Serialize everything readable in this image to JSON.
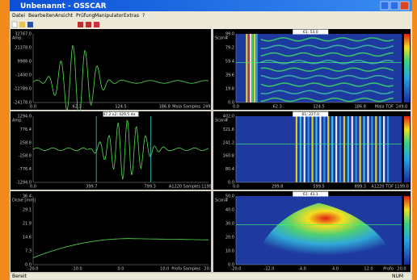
{
  "window": {
    "title": "Unbenannt - OSSCAR"
  },
  "menu": [
    "Datei",
    "Bearbeiten",
    "Ansicht",
    "Prüfung",
    "Manipulator",
    "Extras",
    "?"
  ],
  "panels": [
    {
      "unit": "Amp.",
      "yticks": [
        "32767.0",
        "21378.0",
        "9988.0",
        "-1400.0",
        "-12789.0",
        "-24178.0"
      ],
      "xticks": [
        "0.0",
        "62.3",
        "124.5",
        "186.8",
        "249.0"
      ],
      "xlabel": "Mala Samples"
    },
    {
      "unit": "Scan#",
      "yticks": [
        "99.0",
        "79.2",
        "59.4",
        "39.6",
        "19.8",
        "0.0"
      ],
      "xticks": [
        "0.0",
        "62.3",
        "124.5",
        "186.8",
        "249.0"
      ],
      "xlabel": "Mala TOF",
      "marker": "61: 53.0"
    },
    {
      "unit": "Amp.",
      "yticks": [
        "1294.0",
        "776.4",
        "258.8",
        "-258.8",
        "-776.4",
        "-1294.0"
      ],
      "xticks": [
        "0.0",
        "399.7",
        "799.3",
        "1199.0"
      ],
      "xlabel": "A1220 Samples",
      "marker": "x1: 747.2  x2: 429.5  dx: 317.7"
    },
    {
      "unit": "Scan#",
      "yticks": [
        "402.0",
        "321.6",
        "241.2",
        "160.8",
        "80.4",
        "0.0"
      ],
      "xticks": [
        "0.0",
        "299.8",
        "599.5",
        "899.3",
        "1199.0"
      ],
      "xlabel": "A1220 TOF",
      "marker": "61: 227.0"
    },
    {
      "unit": "Dicke [mm]",
      "yticks": [
        "36.4",
        "29.1",
        "21.9",
        "14.6",
        "7.3",
        "0.0"
      ],
      "xticks": [
        "-20.0",
        "-10.0",
        "0.0",
        "10.0",
        "20.0"
      ],
      "xlabel": "Profo Samples"
    },
    {
      "unit": "Scan#",
      "yticks": [
        "50.0",
        "40.0",
        "30.0",
        "20.0",
        "10.0",
        "0.0"
      ],
      "xticks": [
        "-20.0",
        "-12.0",
        "-4.0",
        "4.0",
        "12.0",
        "20.0"
      ],
      "xlabel": "Profo",
      "marker": "61: 43.1"
    }
  ],
  "status": {
    "left": "Bereit",
    "right": "NUM"
  }
}
